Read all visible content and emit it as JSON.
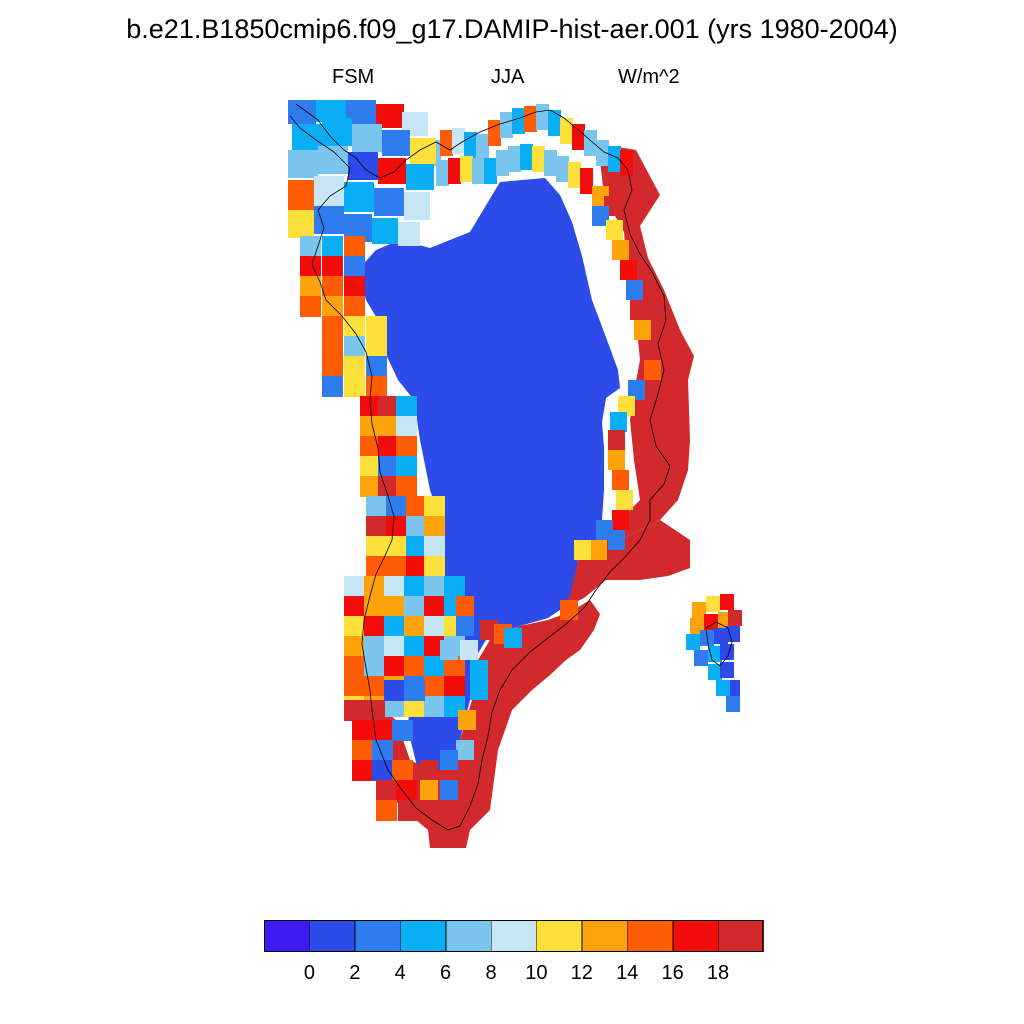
{
  "title": "b.e21.B1850cmip6.f09_g17.DAMIP-hist-aer.001 (yrs 1980-2004)",
  "subtitle": {
    "left": "FSM",
    "center": "JJA",
    "right": "W/m^2"
  },
  "colorbar": {
    "colors": [
      "#3e1bf5",
      "#2c4be8",
      "#2e7cee",
      "#09aef5",
      "#79c5ee",
      "#c6e6f6",
      "#fde13a",
      "#fda30c",
      "#fe5d06",
      "#f20d0b",
      "#d2292c"
    ],
    "labels": [
      "0",
      "2",
      "4",
      "6",
      "8",
      "10",
      "12",
      "14",
      "16",
      "18"
    ]
  },
  "map": {
    "projection": "polar-stereographic",
    "region": "Greenland",
    "interior_color": "#2c4be8",
    "coastline_color": "#000000"
  }
}
